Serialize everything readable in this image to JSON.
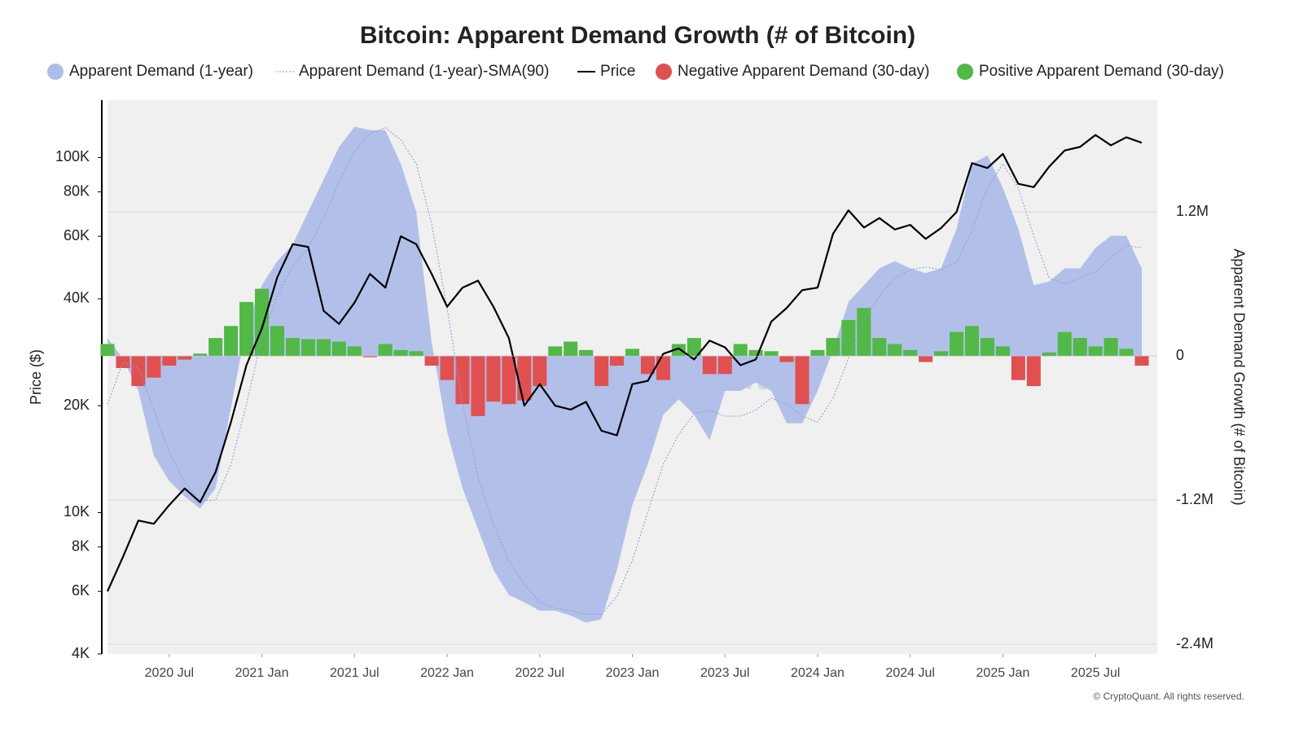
{
  "chart_data": {
    "type": "combo",
    "title": "Bitcoin: Apparent Demand Growth (# of Bitcoin)",
    "y_label": "Price ($)",
    "y2_label": "Apparent Demand Growth (# of Bitcoin)",
    "watermark": "CryptoQuant",
    "credit": "© CryptoQuant. All rights reserved.",
    "x": [
      "2020-03",
      "2020-04",
      "2020-05",
      "2020-06",
      "2020-07",
      "2020-08",
      "2020-09",
      "2020-10",
      "2020-11",
      "2020-12",
      "2021-01",
      "2021-02",
      "2021-03",
      "2021-04",
      "2021-05",
      "2021-06",
      "2021-07",
      "2021-08",
      "2021-09",
      "2021-10",
      "2021-11",
      "2021-12",
      "2022-01",
      "2022-02",
      "2022-03",
      "2022-04",
      "2022-05",
      "2022-06",
      "2022-07",
      "2022-08",
      "2022-09",
      "2022-10",
      "2022-11",
      "2022-12",
      "2023-01",
      "2023-02",
      "2023-03",
      "2023-04",
      "2023-05",
      "2023-06",
      "2023-07",
      "2023-08",
      "2023-09",
      "2023-10",
      "2023-11",
      "2023-12",
      "2024-01",
      "2024-02",
      "2024-03",
      "2024-04",
      "2024-05",
      "2024-06",
      "2024-07",
      "2024-08",
      "2024-09",
      "2024-10",
      "2024-11",
      "2024-12",
      "2025-01",
      "2025-02",
      "2025-03",
      "2025-04",
      "2025-05",
      "2025-06",
      "2025-07",
      "2025-08",
      "2025-09",
      "2025-10"
    ],
    "xlim": [
      "2020-03",
      "2025-11"
    ],
    "xticks": [
      {
        "value": "2020-07",
        "label": "2020 Jul"
      },
      {
        "value": "2021-01",
        "label": "2021 Jan"
      },
      {
        "value": "2021-07",
        "label": "2021 Jul"
      },
      {
        "value": "2022-01",
        "label": "2022 Jan"
      },
      {
        "value": "2022-07",
        "label": "2022 Jul"
      },
      {
        "value": "2023-01",
        "label": "2023 Jan"
      },
      {
        "value": "2023-07",
        "label": "2023 Jul"
      },
      {
        "value": "2024-01",
        "label": "2024 Jan"
      },
      {
        "value": "2024-07",
        "label": "2024 Jul"
      },
      {
        "value": "2025-01",
        "label": "2025 Jan"
      },
      {
        "value": "2025-07",
        "label": "2025 Jul"
      }
    ],
    "y_scale": "log",
    "ylim": [
      4000,
      145000
    ],
    "yticks": [
      {
        "value": 4000,
        "label": "4K"
      },
      {
        "value": 6000,
        "label": "6K"
      },
      {
        "value": 8000,
        "label": "8K"
      },
      {
        "value": 10000,
        "label": "10K"
      },
      {
        "value": 20000,
        "label": "20K"
      },
      {
        "value": 40000,
        "label": "40K"
      },
      {
        "value": 60000,
        "label": "60K"
      },
      {
        "value": 80000,
        "label": "80K"
      },
      {
        "value": 100000,
        "label": "100K"
      }
    ],
    "y2lim": [
      -2480000,
      2130000
    ],
    "y2ticks": [
      {
        "value": -2400000,
        "label": "-2.4M"
      },
      {
        "value": -1200000,
        "label": "-1.2M"
      },
      0,
      {
        "value": 1200000,
        "label": "1.2M"
      }
    ],
    "grid": true,
    "series": [
      {
        "name": "Apparent Demand (1-year)",
        "type": "area",
        "axis": "y2",
        "color": "#aebde8",
        "values": [
          150000,
          -20000,
          -290000,
          -830000,
          -1040000,
          -1170000,
          -1270000,
          -1100000,
          -430000,
          250000,
          590000,
          790000,
          930000,
          1200000,
          1470000,
          1740000,
          1910000,
          1880000,
          1880000,
          1600000,
          1200000,
          115000,
          -630000,
          -1100000,
          -1440000,
          -1780000,
          -1990000,
          -2050000,
          -2120000,
          -2120000,
          -2160000,
          -2220000,
          -2190000,
          -1780000,
          -1240000,
          -900000,
          -490000,
          -360000,
          -490000,
          -700000,
          -290000,
          -290000,
          -220000,
          -290000,
          -560000,
          -560000,
          -290000,
          50000,
          450000,
          590000,
          730000,
          790000,
          730000,
          690000,
          730000,
          1060000,
          1600000,
          1670000,
          1400000,
          1060000,
          590000,
          620000,
          730000,
          730000,
          900000,
          1000000,
          1000000,
          730000
        ]
      },
      {
        "name": "Apparent Demand (1-year)-SMA(90)",
        "type": "dotted-line",
        "axis": "y2",
        "color": "#8a9bd0",
        "values": [
          -400000,
          -50000,
          -100000,
          -450000,
          -800000,
          -1050000,
          -1200000,
          -1200000,
          -900000,
          -400000,
          150000,
          500000,
          750000,
          900000,
          1150000,
          1450000,
          1700000,
          1850000,
          1900000,
          1800000,
          1600000,
          1100000,
          400000,
          -400000,
          -1000000,
          -1400000,
          -1700000,
          -1900000,
          -2050000,
          -2100000,
          -2120000,
          -2150000,
          -2150000,
          -2000000,
          -1700000,
          -1300000,
          -900000,
          -650000,
          -480000,
          -450000,
          -500000,
          -500000,
          -450000,
          -350000,
          -400000,
          -500000,
          -550000,
          -350000,
          -20000,
          300000,
          500000,
          650000,
          720000,
          740000,
          720000,
          780000,
          1050000,
          1400000,
          1600000,
          1400000,
          1000000,
          650000,
          600000,
          650000,
          700000,
          820000,
          920000,
          900000
        ]
      },
      {
        "name": "Price",
        "type": "line",
        "axis": "y",
        "color": "#000000",
        "values": [
          6000,
          7500,
          9500,
          9300,
          10500,
          11700,
          10700,
          13000,
          18000,
          26000,
          33000,
          46000,
          57000,
          56000,
          37000,
          34000,
          39000,
          47000,
          43000,
          60000,
          57000,
          47000,
          38000,
          43000,
          45000,
          38000,
          31000,
          20000,
          23000,
          20000,
          19500,
          20500,
          17000,
          16500,
          23000,
          23500,
          28000,
          29000,
          27000,
          30500,
          29200,
          26000,
          27000,
          34500,
          37700,
          42300,
          43000,
          61000,
          71000,
          63500,
          67500,
          62700,
          64600,
          59000,
          63300,
          70200,
          96400,
          93400,
          102400,
          84300,
          82500,
          94200,
          104600,
          107100,
          115700,
          108200,
          114000,
          110000
        ]
      },
      {
        "name": "Negative Apparent Demand (30-day)",
        "type": "bar",
        "axis": "y2",
        "color": "#e05050",
        "values": [
          null,
          -100000,
          -250000,
          -180000,
          -80000,
          -30000,
          null,
          null,
          null,
          null,
          null,
          null,
          null,
          null,
          null,
          null,
          null,
          -10000,
          null,
          null,
          null,
          -80000,
          -200000,
          -400000,
          -500000,
          -380000,
          -400000,
          -370000,
          -250000,
          null,
          null,
          null,
          -250000,
          -80000,
          null,
          -150000,
          -200000,
          null,
          null,
          -150000,
          -150000,
          null,
          null,
          null,
          -50000,
          -400000,
          null,
          null,
          null,
          null,
          null,
          null,
          null,
          -50000,
          null,
          null,
          null,
          null,
          null,
          -200000,
          -250000,
          null,
          null,
          null,
          null,
          null,
          null,
          -80000
        ]
      },
      {
        "name": "Positive Apparent Demand (30-day)",
        "type": "bar",
        "axis": "y2",
        "color": "#52b847",
        "values": [
          100000,
          null,
          null,
          null,
          null,
          null,
          20000,
          150000,
          250000,
          450000,
          560000,
          250000,
          150000,
          140000,
          140000,
          120000,
          80000,
          null,
          100000,
          50000,
          40000,
          null,
          null,
          null,
          null,
          null,
          null,
          null,
          null,
          80000,
          120000,
          50000,
          null,
          null,
          60000,
          null,
          null,
          100000,
          150000,
          null,
          null,
          100000,
          50000,
          40000,
          null,
          null,
          50000,
          150000,
          300000,
          400000,
          150000,
          100000,
          50000,
          null,
          40000,
          200000,
          250000,
          150000,
          80000,
          null,
          null,
          30000,
          200000,
          150000,
          80000,
          150000,
          60000,
          null
        ]
      }
    ]
  }
}
